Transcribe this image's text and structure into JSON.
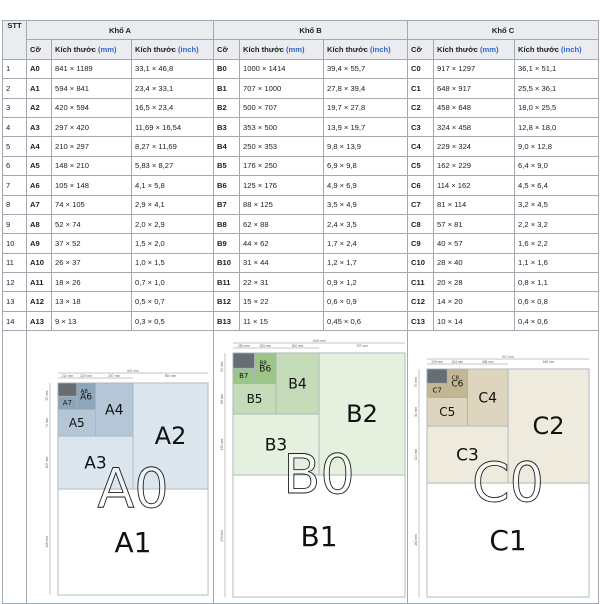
{
  "header": {
    "stt": "STT",
    "group_a": "Khổ A",
    "group_b": "Khổ B",
    "group_c": "Khổ C",
    "size_col": "Cỡ",
    "dim_col": "Kích thước",
    "unit_mm": "(mm)",
    "unit_inch": "(inch)"
  },
  "rows": [
    {
      "stt": "1",
      "a": {
        "code": "A0",
        "mm": "841 × 1189",
        "inch": "33,1 × 46,8"
      },
      "b": {
        "code": "B0",
        "mm": "1000 × 1414",
        "inch": "39,4 × 55,7"
      },
      "c": {
        "code": "C0",
        "mm": "917 × 1297",
        "inch": "36,1 × 51,1"
      }
    },
    {
      "stt": "2",
      "a": {
        "code": "A1",
        "mm": "594 × 841",
        "inch": "23,4 × 33,1"
      },
      "b": {
        "code": "B1",
        "mm": "707 × 1000",
        "inch": "27,8 × 39,4"
      },
      "c": {
        "code": "C1",
        "mm": "648 × 917",
        "inch": "25,5 × 36,1"
      }
    },
    {
      "stt": "3",
      "a": {
        "code": "A2",
        "mm": "420 × 594",
        "inch": "16,5 × 23,4"
      },
      "b": {
        "code": "B2",
        "mm": "500 × 707",
        "inch": "19,7 × 27,8"
      },
      "c": {
        "code": "C2",
        "mm": "458 × 648",
        "inch": "18,0 × 25,5"
      }
    },
    {
      "stt": "4",
      "a": {
        "code": "A3",
        "mm": "297 × 420",
        "inch": "11,69 × 16,54"
      },
      "b": {
        "code": "B3",
        "mm": "353 × 500",
        "inch": "13,9 × 19,7"
      },
      "c": {
        "code": "C3",
        "mm": "324 × 458",
        "inch": "12,8 × 18,0"
      }
    },
    {
      "stt": "5",
      "a": {
        "code": "A4",
        "mm": "210 × 297",
        "inch": "8,27 × 11,69"
      },
      "b": {
        "code": "B4",
        "mm": "250 × 353",
        "inch": "9,8 × 13,9"
      },
      "c": {
        "code": "C4",
        "mm": "229 × 324",
        "inch": "9,0 × 12,8"
      }
    },
    {
      "stt": "6",
      "a": {
        "code": "A5",
        "mm": "148 × 210",
        "inch": "5,83 × 8,27"
      },
      "b": {
        "code": "B5",
        "mm": "176 × 250",
        "inch": "6,9 × 9,8"
      },
      "c": {
        "code": "C5",
        "mm": "162 × 229",
        "inch": "6,4 × 9,0"
      }
    },
    {
      "stt": "7",
      "a": {
        "code": "A6",
        "mm": "105 × 148",
        "inch": "4,1 × 5,8"
      },
      "b": {
        "code": "B6",
        "mm": "125 × 176",
        "inch": "4,9 × 6,9"
      },
      "c": {
        "code": "C6",
        "mm": "114 × 162",
        "inch": "4,5 × 6,4"
      }
    },
    {
      "stt": "8",
      "a": {
        "code": "A7",
        "mm": "74 × 105",
        "inch": "2,9 × 4,1"
      },
      "b": {
        "code": "B7",
        "mm": "88 × 125",
        "inch": "3,5 × 4,9"
      },
      "c": {
        "code": "C7",
        "mm": "81 × 114",
        "inch": "3,2 × 4,5"
      }
    },
    {
      "stt": "9",
      "a": {
        "code": "A8",
        "mm": "52 × 74",
        "inch": "2,0 × 2,9"
      },
      "b": {
        "code": "B8",
        "mm": "62 × 88",
        "inch": "2,4 × 3,5"
      },
      "c": {
        "code": "C8",
        "mm": "57 × 81",
        "inch": "2,2 × 3,2"
      }
    },
    {
      "stt": "10",
      "a": {
        "code": "A9",
        "mm": "37 × 52",
        "inch": "1,5 × 2,0"
      },
      "b": {
        "code": "B9",
        "mm": "44 × 62",
        "inch": "1,7 × 2,4"
      },
      "c": {
        "code": "C9",
        "mm": "40 × 57",
        "inch": "1,6 × 2,2"
      }
    },
    {
      "stt": "11",
      "a": {
        "code": "A10",
        "mm": "26 × 37",
        "inch": "1,0 × 1,5"
      },
      "b": {
        "code": "B10",
        "mm": "31 × 44",
        "inch": "1,2 × 1,7"
      },
      "c": {
        "code": "C10",
        "mm": "28 × 40",
        "inch": "1,1 × 1,6"
      }
    },
    {
      "stt": "12",
      "a": {
        "code": "A11",
        "mm": "18 × 26",
        "inch": "0,7 × 1,0"
      },
      "b": {
        "code": "B11",
        "mm": "22 × 31",
        "inch": "0,9 × 1,2"
      },
      "c": {
        "code": "C11",
        "mm": "20 × 28",
        "inch": "0,8 × 1,1"
      }
    },
    {
      "stt": "13",
      "a": {
        "code": "A12",
        "mm": "13 × 18",
        "inch": "0,5 × 0,7"
      },
      "b": {
        "code": "B12",
        "mm": "15 × 22",
        "inch": "0,6 × 0,9"
      },
      "c": {
        "code": "C12",
        "mm": "14 × 20",
        "inch": "0,6 × 0,8"
      }
    },
    {
      "stt": "14",
      "a": {
        "code": "A13",
        "mm": "9 × 13",
        "inch": "0,3 × 0,5"
      },
      "b": {
        "code": "B13",
        "mm": "11 × 15",
        "inch": "0,45 × 0,6"
      },
      "c": {
        "code": "C13",
        "mm": "10 × 14",
        "inch": "0,4 × 0,6"
      }
    }
  ],
  "figures": {
    "a": {
      "labels": [
        "A8",
        "A7",
        "A6",
        "A5",
        "A4",
        "A3",
        "A2",
        "A1"
      ],
      "watermark": "A0",
      "dims": [
        "841 mm",
        "594 mm",
        "297 mm",
        "420 mm",
        "210 mm",
        "148 mm",
        "105 mm",
        "74 mm",
        "52 mm"
      ],
      "fill": "#dce6ef",
      "fill_dark": "#b5c7d6",
      "fill_darker": "#8ea6ba"
    },
    "b": {
      "labels": [
        "B8",
        "B7",
        "B6",
        "B5",
        "B4",
        "B3",
        "B2",
        "B1"
      ],
      "watermark": "B0",
      "dims": [
        "1000 mm",
        "707 mm",
        "500 mm",
        "353 mm",
        "250 mm",
        "176 mm",
        "125 mm",
        "88 mm",
        "62 mm"
      ],
      "fill": "#e5f0df",
      "fill_dark": "#c4dcb8",
      "fill_darker": "#9cc589"
    },
    "c": {
      "labels": [
        "C8",
        "C7",
        "C6",
        "C5",
        "C4",
        "C3",
        "C2",
        "C1"
      ],
      "watermark": "C0",
      "dims": [
        "917 mm",
        "648 mm",
        "458 mm",
        "324 mm",
        "229 mm",
        "162 mm",
        "114 mm",
        "81 mm",
        "57 mm"
      ],
      "fill": "#eeeadd",
      "fill_dark": "#ddd5bd",
      "fill_darker": "#c3b793"
    }
  }
}
